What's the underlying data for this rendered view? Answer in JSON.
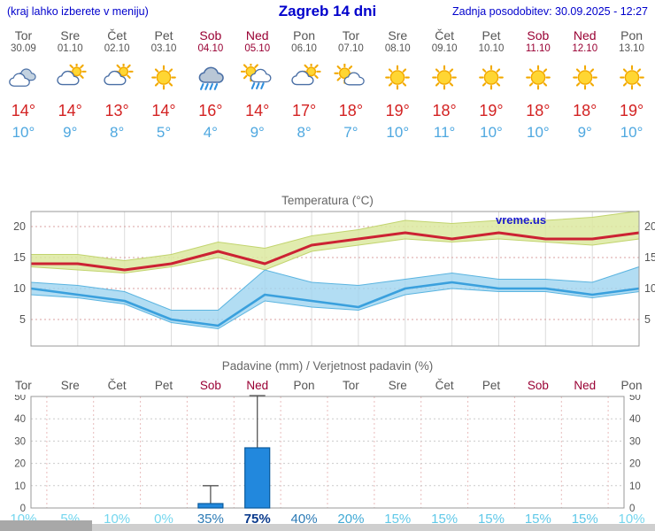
{
  "header": {
    "left_note": "(kraj lahko izberete v meniju)",
    "title": "Zagreb 14 dni",
    "updated": "Zadnja posodobitev: 30.09.2025 - 12:27"
  },
  "days": [
    {
      "name": "Tor",
      "date": "30.09",
      "icon": "cloudy",
      "tmax": 14,
      "tmin": 10,
      "weekend": false
    },
    {
      "name": "Sre",
      "date": "01.10",
      "icon": "mostly-cloudy",
      "tmax": 14,
      "tmin": 9,
      "weekend": false
    },
    {
      "name": "Čet",
      "date": "02.10",
      "icon": "mostly-cloudy",
      "tmax": 13,
      "tmin": 8,
      "weekend": false
    },
    {
      "name": "Pet",
      "date": "03.10",
      "icon": "sunny",
      "tmax": 14,
      "tmin": 5,
      "weekend": false
    },
    {
      "name": "Sob",
      "date": "04.10",
      "icon": "rain",
      "tmax": 16,
      "tmin": 4,
      "weekend": true
    },
    {
      "name": "Ned",
      "date": "05.10",
      "icon": "sun-rain",
      "tmax": 14,
      "tmin": 9,
      "weekend": true
    },
    {
      "name": "Pon",
      "date": "06.10",
      "icon": "mostly-cloudy",
      "tmax": 17,
      "tmin": 8,
      "weekend": false
    },
    {
      "name": "Tor",
      "date": "07.10",
      "icon": "partly-cloudy",
      "tmax": 18,
      "tmin": 7,
      "weekend": false
    },
    {
      "name": "Sre",
      "date": "08.10",
      "icon": "sunny",
      "tmax": 19,
      "tmin": 10,
      "weekend": false
    },
    {
      "name": "Čet",
      "date": "09.10",
      "icon": "sunny",
      "tmax": 18,
      "tmin": 11,
      "weekend": false
    },
    {
      "name": "Pet",
      "date": "10.10",
      "icon": "sunny",
      "tmax": 19,
      "tmin": 10,
      "weekend": false
    },
    {
      "name": "Sob",
      "date": "11.10",
      "icon": "sunny",
      "tmax": 18,
      "tmin": 10,
      "weekend": true
    },
    {
      "name": "Ned",
      "date": "12.10",
      "icon": "sunny",
      "tmax": 18,
      "tmin": 9,
      "weekend": true
    },
    {
      "name": "Pon",
      "date": "13.10",
      "icon": "sunny",
      "tmax": 19,
      "tmin": 10,
      "weekend": false
    }
  ],
  "colors": {
    "header_blue": "#0000cc",
    "tmax_red": "#d32222",
    "tmin_blue": "#4fa8e0",
    "weekend": "#990033",
    "weekday": "#555555",
    "max_band": "#dce9a0",
    "min_band": "#9fd4f0",
    "bar_fill": "#2288dd",
    "bar_stroke": "#0a5a9c",
    "watermark": "#1a1acc"
  },
  "chart_data": [
    {
      "id": "temperature",
      "type": "line",
      "title": "Temperatura (°C)",
      "watermark": "vreme.us",
      "categories": [
        "Tor",
        "Sre",
        "Čet",
        "Pet",
        "Sob",
        "Ned",
        "Pon",
        "Tor",
        "Sre",
        "Čet",
        "Pet",
        "Sob",
        "Ned",
        "Pon"
      ],
      "ylim": [
        0,
        22.5
      ],
      "yticks": [
        5,
        10,
        15,
        20
      ],
      "grid": true,
      "series": [
        {
          "name": "max-temp",
          "values": [
            14,
            14,
            13,
            14,
            16,
            14,
            17,
            18,
            19,
            18,
            19,
            18,
            18,
            19
          ],
          "color": "#cc2233"
        },
        {
          "name": "min-temp",
          "values": [
            10,
            9,
            8,
            5,
            4,
            9,
            8,
            7,
            10,
            11,
            10,
            10,
            9,
            10
          ],
          "color": "#3aa0dd"
        },
        {
          "name": "max-temp-range-upper",
          "values": [
            15.5,
            15.5,
            14.5,
            15.5,
            17.5,
            16.5,
            18.5,
            19.5,
            21,
            20.5,
            21,
            21,
            21.5,
            22.5
          ]
        },
        {
          "name": "max-temp-range-lower",
          "values": [
            13.5,
            13,
            12.5,
            13.5,
            15,
            13,
            16,
            17,
            18,
            17.5,
            18,
            17.5,
            17,
            18
          ]
        },
        {
          "name": "min-temp-range-upper",
          "values": [
            11,
            10.5,
            9.5,
            6.5,
            6.5,
            13,
            11,
            10.5,
            11.5,
            12.5,
            11.5,
            11.5,
            11,
            13.5
          ]
        },
        {
          "name": "min-temp-range-lower",
          "values": [
            9,
            8.5,
            7.5,
            4.5,
            3.5,
            8,
            7,
            6.5,
            9,
            10,
            9.5,
            9.5,
            8.5,
            9.5
          ]
        }
      ]
    },
    {
      "id": "precipitation",
      "type": "bar",
      "title": "Padavine (mm) / Verjetnost padavin (%)",
      "categories": [
        "Tor",
        "Sre",
        "Čet",
        "Pet",
        "Sob",
        "Ned",
        "Pon",
        "Tor",
        "Sre",
        "Čet",
        "Pet",
        "Sob",
        "Ned",
        "Pon"
      ],
      "weekend_flags": [
        false,
        false,
        false,
        false,
        true,
        true,
        false,
        false,
        false,
        false,
        false,
        true,
        true,
        false
      ],
      "ylim": [
        0,
        52
      ],
      "yticks": [
        0,
        10,
        20,
        30,
        40,
        50
      ],
      "values": [
        0,
        0,
        0,
        0,
        2,
        27,
        0,
        0,
        0,
        0,
        0,
        0,
        0,
        0
      ],
      "whisker_max": [
        0,
        0,
        0,
        0,
        10,
        52,
        0,
        0,
        0,
        0,
        0,
        0,
        0,
        0
      ],
      "probabilities": [
        10,
        5,
        10,
        0,
        35,
        75,
        40,
        20,
        15,
        15,
        15,
        15,
        15,
        10
      ]
    }
  ]
}
